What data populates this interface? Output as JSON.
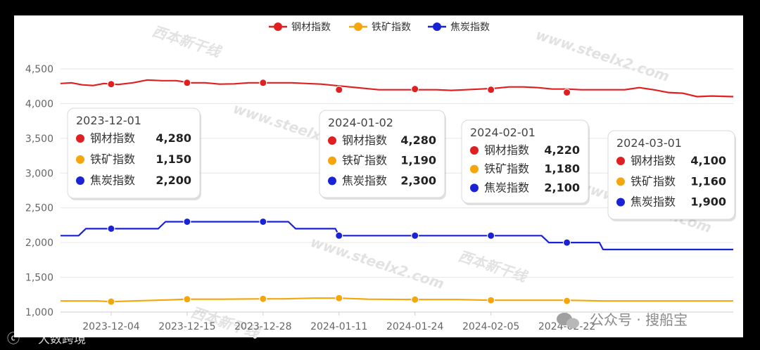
{
  "chart_data": {
    "type": "line",
    "y_ticks": [
      1000,
      1500,
      2000,
      2500,
      3000,
      3500,
      4000,
      4500
    ],
    "y_tick_labels": [
      "1,000",
      "1,500",
      "2,000",
      "2,500",
      "3,000",
      "3,500",
      "4,000",
      "4,500"
    ],
    "ylim": [
      1000,
      4500
    ],
    "x_tick_labels": [
      "2023-12-04",
      "2023-12-15",
      "2023-12-28",
      "2024-01-11",
      "2024-01-24",
      "2024-02-05",
      "2024-02-22"
    ],
    "legend_position": "top-center",
    "grid": true,
    "series": [
      {
        "name": "钢材指数",
        "color": "#e02020",
        "line_points": [
          [
            0,
            4290
          ],
          [
            3,
            4300
          ],
          [
            6,
            4270
          ],
          [
            9,
            4260
          ],
          [
            12,
            4290
          ],
          [
            16,
            4275
          ],
          [
            20,
            4300
          ],
          [
            24,
            4340
          ],
          [
            28,
            4330
          ],
          [
            32,
            4330
          ],
          [
            36,
            4300
          ],
          [
            40,
            4300
          ],
          [
            44,
            4280
          ],
          [
            48,
            4285
          ],
          [
            52,
            4300
          ],
          [
            56,
            4300
          ],
          [
            60,
            4300
          ],
          [
            64,
            4300
          ],
          [
            68,
            4290
          ],
          [
            72,
            4280
          ],
          [
            76,
            4260
          ],
          [
            80,
            4240
          ],
          [
            84,
            4220
          ],
          [
            88,
            4200
          ],
          [
            92,
            4200
          ],
          [
            96,
            4200
          ],
          [
            100,
            4200
          ],
          [
            104,
            4200
          ],
          [
            108,
            4190
          ],
          [
            112,
            4200
          ],
          [
            116,
            4210
          ],
          [
            120,
            4220
          ],
          [
            124,
            4240
          ],
          [
            128,
            4240
          ],
          [
            132,
            4230
          ],
          [
            136,
            4210
          ],
          [
            140,
            4210
          ],
          [
            144,
            4200
          ],
          [
            148,
            4200
          ],
          [
            152,
            4200
          ],
          [
            156,
            4200
          ],
          [
            160,
            4230
          ],
          [
            164,
            4200
          ],
          [
            168,
            4160
          ],
          [
            172,
            4150
          ],
          [
            176,
            4100
          ],
          [
            180,
            4110
          ],
          [
            186,
            4100
          ]
        ],
        "markers": [
          [
            14,
            4280
          ],
          [
            35,
            4300
          ],
          [
            56,
            4300
          ],
          [
            77,
            4200
          ],
          [
            98,
            4210
          ],
          [
            119,
            4200
          ],
          [
            140,
            4160
          ]
        ]
      },
      {
        "name": "铁矿指数",
        "color": "#f4a60b",
        "line_points": [
          [
            0,
            1160
          ],
          [
            10,
            1160
          ],
          [
            14,
            1150
          ],
          [
            20,
            1160
          ],
          [
            30,
            1175
          ],
          [
            35,
            1185
          ],
          [
            45,
            1185
          ],
          [
            56,
            1190
          ],
          [
            62,
            1190
          ],
          [
            70,
            1200
          ],
          [
            77,
            1200
          ],
          [
            85,
            1185
          ],
          [
            98,
            1180
          ],
          [
            110,
            1180
          ],
          [
            119,
            1170
          ],
          [
            130,
            1170
          ],
          [
            140,
            1170
          ],
          [
            150,
            1160
          ],
          [
            160,
            1160
          ],
          [
            186,
            1160
          ]
        ],
        "markers": [
          [
            14,
            1150
          ],
          [
            35,
            1185
          ],
          [
            56,
            1190
          ],
          [
            77,
            1200
          ],
          [
            98,
            1180
          ],
          [
            119,
            1170
          ],
          [
            140,
            1160
          ]
        ]
      },
      {
        "name": "焦炭指数",
        "color": "#1a22d6",
        "line_points": [
          [
            0,
            2100
          ],
          [
            5,
            2100
          ],
          [
            7,
            2200
          ],
          [
            14,
            2200
          ],
          [
            27,
            2200
          ],
          [
            29,
            2300
          ],
          [
            35,
            2300
          ],
          [
            56,
            2300
          ],
          [
            63,
            2300
          ],
          [
            65,
            2200
          ],
          [
            76,
            2200
          ],
          [
            77,
            2100
          ],
          [
            98,
            2100
          ],
          [
            119,
            2100
          ],
          [
            133,
            2100
          ],
          [
            135,
            2000
          ],
          [
            140,
            2000
          ],
          [
            149,
            2000
          ],
          [
            150,
            1900
          ],
          [
            186,
            1900
          ]
        ],
        "markers": [
          [
            14,
            2200
          ],
          [
            35,
            2300
          ],
          [
            56,
            2300
          ],
          [
            77,
            2100
          ],
          [
            98,
            2100
          ],
          [
            119,
            2100
          ],
          [
            140,
            2000
          ]
        ]
      }
    ],
    "tooltips": [
      {
        "date": "2023-12-01",
        "values": [
          "4,280",
          "1,150",
          "2,200"
        ]
      },
      {
        "date": "2024-01-02",
        "values": [
          "4,280",
          "1,190",
          "2,300"
        ]
      },
      {
        "date": "2024-02-01",
        "values": [
          "4,220",
          "1,180",
          "2,100"
        ]
      },
      {
        "date": "2024-03-01",
        "values": [
          "4,100",
          "1,160",
          "1,900"
        ]
      }
    ]
  },
  "watermarks": {
    "site": "www.steelx2.com",
    "brand": "西本新干线",
    "wechat": "公众号 · 搜船宝",
    "corner": "大数跨境"
  }
}
